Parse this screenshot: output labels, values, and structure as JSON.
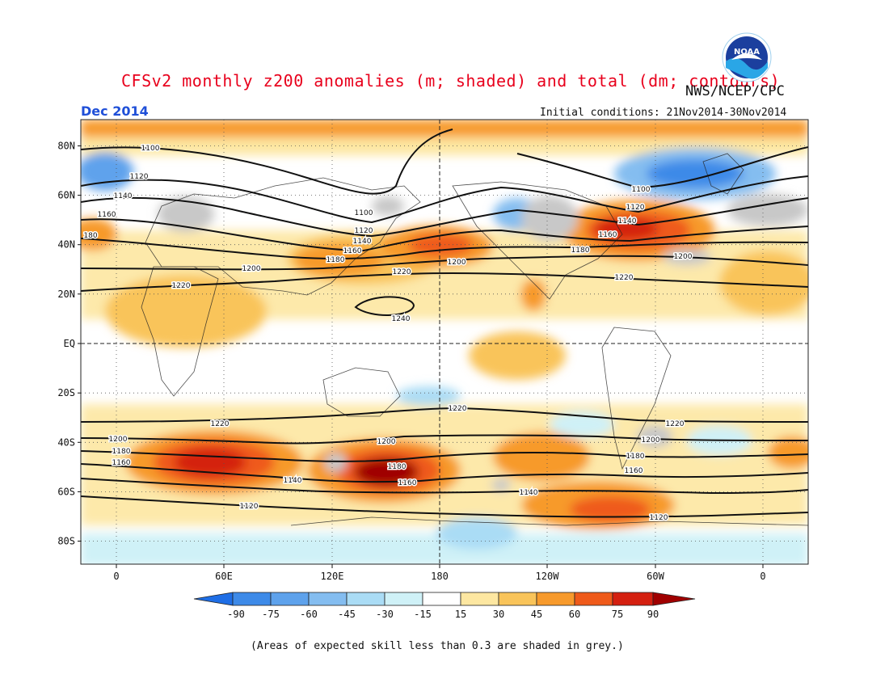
{
  "title": "CFSv2 monthly z200 anomalies (m; shaded) and total (dm; contours)",
  "agency": "NWS/NCEP/CPC",
  "logo_text": "NOAA",
  "valid_month": "Dec 2014",
  "initial_conditions": "Initial conditions: 21Nov2014-30Nov2014",
  "footnote": "(Areas of expected skill less than 0.3 are shaded in grey.)",
  "lat_labels": [
    "80N",
    "60N",
    "40N",
    "20N",
    "EQ",
    "20S",
    "40S",
    "60S",
    "80S"
  ],
  "lon_labels": [
    "0",
    "60E",
    "120E",
    "180",
    "120W",
    "60W",
    "0"
  ],
  "colorbar": {
    "tick_labels": [
      "-90",
      "-75",
      "-60",
      "-45",
      "-30",
      "-15",
      "15",
      "30",
      "45",
      "60",
      "75",
      "90"
    ],
    "colors": [
      "#1e6ee6",
      "#3d8ae8",
      "#5ea2ec",
      "#84bdf0",
      "#aadcf5",
      "#cff1f7",
      "#ffffff",
      "#fde7a1",
      "#f9c45a",
      "#f79a2c",
      "#ef5a1a",
      "#d42010",
      "#a00000"
    ]
  },
  "contour_labels": [
    {
      "text": "1100"
    },
    {
      "text": "1120"
    },
    {
      "text": "1140"
    },
    {
      "text": "1160"
    },
    {
      "text": "180"
    },
    {
      "text": "1100"
    },
    {
      "text": "1120"
    },
    {
      "text": "1140"
    },
    {
      "text": "1160"
    },
    {
      "text": "1180"
    },
    {
      "text": "1200"
    },
    {
      "text": "1220"
    },
    {
      "text": "1200"
    },
    {
      "text": "1220"
    },
    {
      "text": "1240"
    },
    {
      "text": "1100"
    },
    {
      "text": "1120"
    },
    {
      "text": "1140"
    },
    {
      "text": "1160"
    },
    {
      "text": "1180"
    },
    {
      "text": "1200"
    },
    {
      "text": "1220"
    },
    {
      "text": "1220"
    },
    {
      "text": "1220"
    },
    {
      "text": "1220"
    },
    {
      "text": "1200"
    },
    {
      "text": "1180"
    },
    {
      "text": "1160"
    },
    {
      "text": "1140"
    },
    {
      "text": "1120"
    },
    {
      "text": "1200"
    },
    {
      "text": "1180"
    },
    {
      "text": "1160"
    },
    {
      "text": "1200"
    },
    {
      "text": "1180"
    },
    {
      "text": "1160"
    },
    {
      "text": "1140"
    },
    {
      "text": "1120"
    }
  ]
}
